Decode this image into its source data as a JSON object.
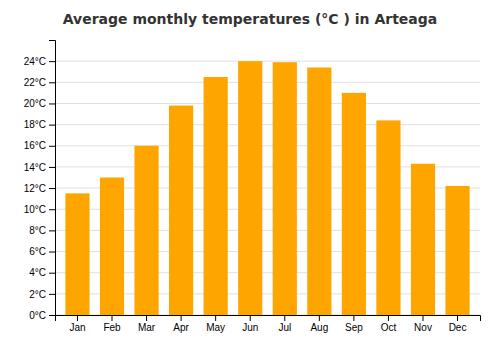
{
  "chart_data": {
    "type": "bar",
    "title": "Average monthly temperatures (°C ) in Arteaga",
    "categories": [
      "Jan",
      "Feb",
      "Mar",
      "Apr",
      "May",
      "Jun",
      "Jul",
      "Aug",
      "Sep",
      "Oct",
      "Nov",
      "Dec"
    ],
    "values": [
      11.5,
      13.0,
      16.0,
      19.8,
      22.5,
      24.0,
      23.9,
      23.4,
      21.0,
      18.4,
      14.3,
      12.2
    ],
    "color": "#FFA500",
    "ylim": [
      0,
      26
    ],
    "yticks": [
      {
        "value": 0,
        "label": "0°C"
      },
      {
        "value": 2,
        "label": "2°C"
      },
      {
        "value": 4,
        "label": "4°C"
      },
      {
        "value": 6,
        "label": "6°C"
      },
      {
        "value": 8,
        "label": "8°C"
      },
      {
        "value": 10,
        "label": "10°C"
      },
      {
        "value": 12,
        "label": "12°C"
      },
      {
        "value": 14,
        "label": "14°C"
      },
      {
        "value": 16,
        "label": "16°C"
      },
      {
        "value": 18,
        "label": "18°C"
      },
      {
        "value": 20,
        "label": "20°C"
      },
      {
        "value": 22,
        "label": "22°C"
      },
      {
        "value": 24,
        "label": "24°C"
      }
    ],
    "grid": true
  }
}
